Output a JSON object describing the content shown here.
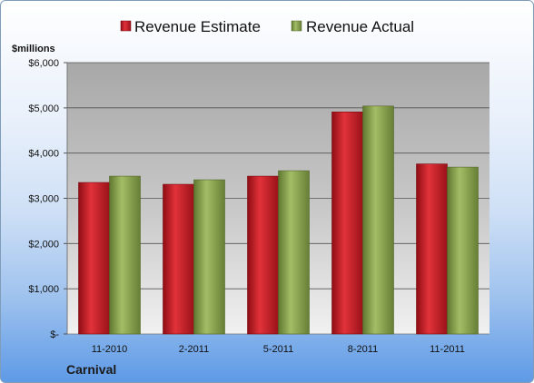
{
  "chart_data": {
    "type": "bar",
    "categories": [
      "11-2010",
      "2-2011",
      "5-2011",
      "8-2011",
      "11-2011"
    ],
    "series": [
      {
        "name": "Revenue Estimate",
        "values": [
          3350,
          3310,
          3490,
          4910,
          3760
        ],
        "color": "#cc1f26"
      },
      {
        "name": "Revenue Actual",
        "values": [
          3490,
          3410,
          3610,
          5040,
          3690
        ],
        "color": "#8aa44e"
      }
    ],
    "ylabel": "$millions",
    "ylim": [
      0,
      6000
    ],
    "yticks": [
      0,
      1000,
      2000,
      3000,
      4000,
      5000,
      6000
    ],
    "ytick_labels": [
      "$-",
      "$1,000",
      "$2,000",
      "$3,000",
      "$4,000",
      "$5,000",
      "$6,000"
    ],
    "legend_position": "top",
    "grid": true,
    "footer": "Carnival"
  }
}
